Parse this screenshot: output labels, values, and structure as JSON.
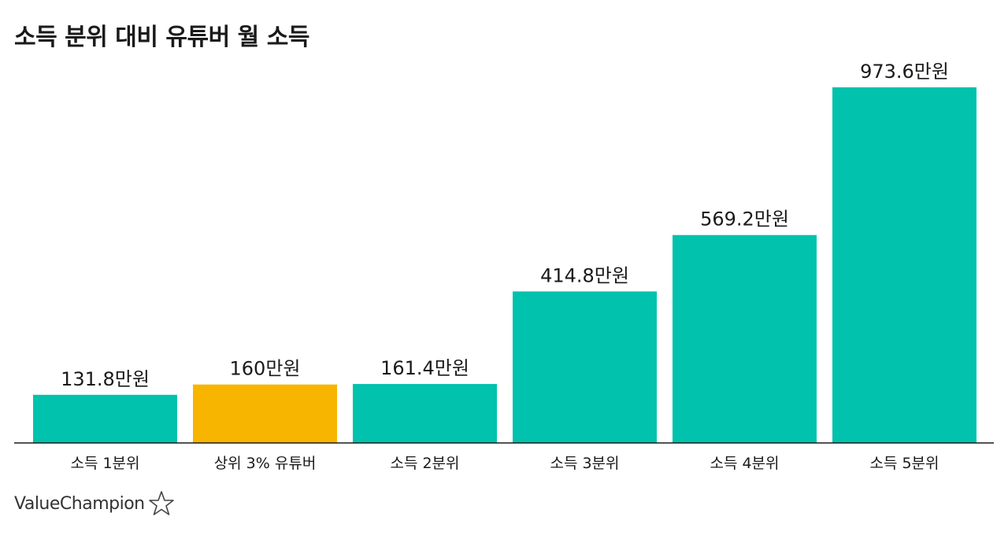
{
  "chart_data": {
    "type": "bar",
    "title": "소득 분위 대비 유튜버 월 소득",
    "xlabel": "",
    "ylabel": "",
    "ylim": [
      0,
      1000
    ],
    "grid": false,
    "categories": [
      "소득 1분위",
      "상위 3% 유튜버",
      "소득 2분위",
      "소득 3분위",
      "소득 4분위",
      "소득 5분위"
    ],
    "values": [
      131.8,
      160,
      161.4,
      414.8,
      569.2,
      973.6
    ],
    "data_labels": [
      "131.8만원",
      "160만원",
      "161.4만원",
      "414.8만원",
      "569.2만원",
      "973.6만원"
    ],
    "bar_colors": [
      "#00c2ad",
      "#f7b500",
      "#00c2ad",
      "#00c2ad",
      "#00c2ad",
      "#00c2ad"
    ]
  },
  "brand": {
    "name": "ValueChampion",
    "icon": "star-outline-icon"
  },
  "colors": {
    "axis": "#1a1a1a",
    "text": "#1a1a1a",
    "label": "#1a1a1a"
  }
}
